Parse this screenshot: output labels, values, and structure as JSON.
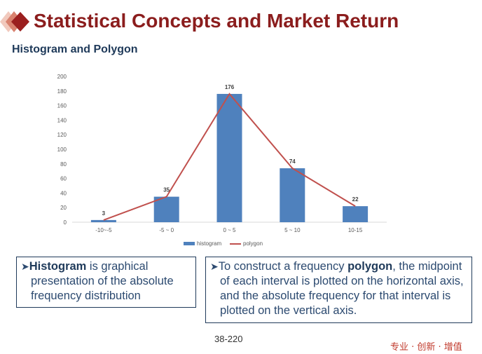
{
  "slide": {
    "title": "Statistical Concepts and Market Return",
    "subtitle": "Histogram and Polygon",
    "page_number": "38-220",
    "slogan": "专业 · 创新 · 增值"
  },
  "left_box": {
    "bold": "Histogram",
    "rest": " is graphical presentation of the absolute frequency distribution"
  },
  "right_box": {
    "before": "To construct a frequency ",
    "bold": "polygon",
    "after": ", the midpoint of each interval is plotted on the horizontal axis, and the absolute frequency for that interval is plotted on the vertical axis."
  },
  "colors": {
    "bar": "#4f81bd",
    "line": "#c0504d",
    "title": "#8b1d1d"
  },
  "chart_data": {
    "type": "bar",
    "categories": [
      "-10~-5",
      "-5 ~ 0",
      "0 ~ 5",
      "5 ~ 10",
      "10-15"
    ],
    "series": [
      {
        "name": "histogram",
        "type": "bar",
        "values": [
          3,
          35,
          176,
          74,
          22
        ]
      },
      {
        "name": "polygon",
        "type": "line",
        "values": [
          3,
          35,
          176,
          74,
          22
        ]
      }
    ],
    "ylim": [
      0,
      200
    ],
    "yticks": [
      0,
      20,
      40,
      60,
      80,
      100,
      120,
      140,
      160,
      180,
      200
    ],
    "data_labels": [
      "3",
      "35",
      "176",
      "74",
      "22"
    ],
    "legend": "bottom",
    "grid": false
  }
}
